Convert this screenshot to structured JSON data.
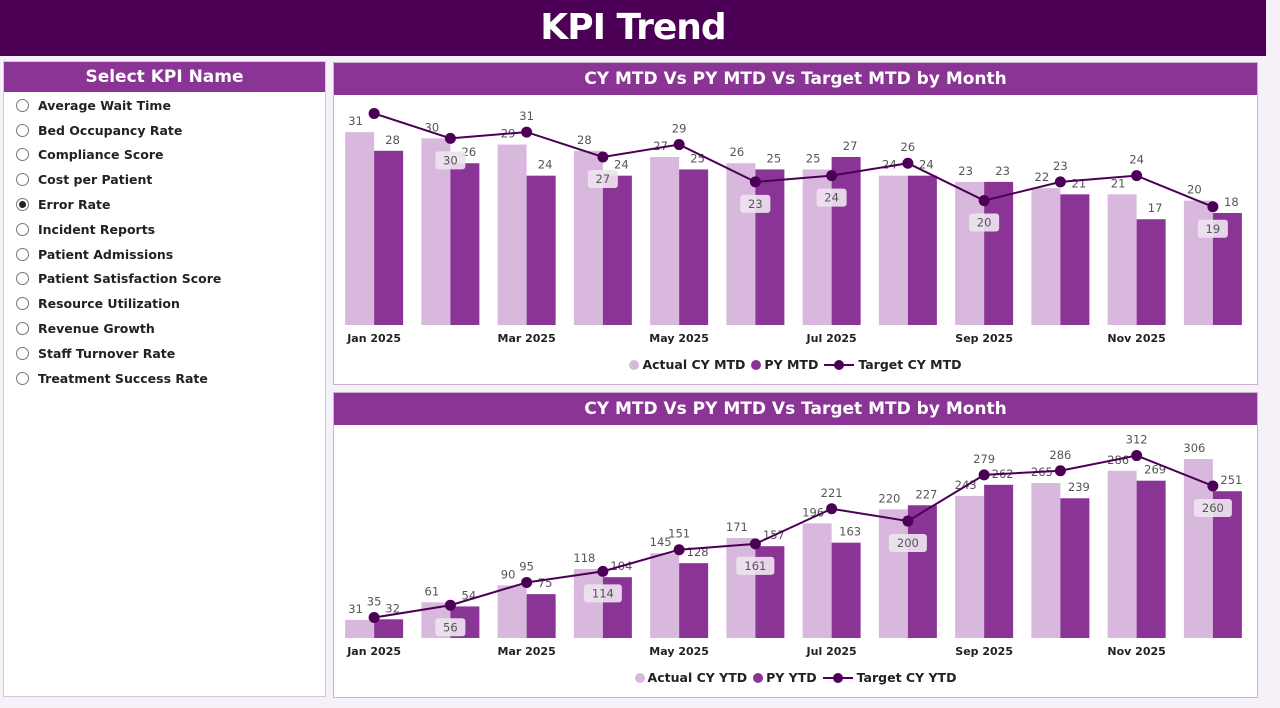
{
  "title": "KPI Trend",
  "slicer": {
    "title": "Select KPI Name",
    "selected": "Error Rate",
    "items": [
      "Average Wait Time",
      "Bed Occupancy Rate",
      "Compliance Score",
      "Cost per Patient",
      "Error Rate",
      "Incident Reports",
      "Patient Admissions",
      "Patient Satisfaction Score",
      "Resource Utilization",
      "Revenue Growth",
      "Staff Turnover Rate",
      "Treatment Success Rate"
    ]
  },
  "colors": {
    "header": "#4b0055",
    "panel": "#8a3596",
    "actual": "#d8b9dd",
    "py": "#8a3596",
    "target": "#4b0055"
  },
  "chart_data": [
    {
      "type": "bar+line",
      "title": "CY MTD Vs PY MTD Vs Target MTD by Month",
      "categories": [
        "Jan 2025",
        "Feb 2025",
        "Mar 2025",
        "Apr 2025",
        "May 2025",
        "Jun 2025",
        "Jul 2025",
        "Aug 2025",
        "Sep 2025",
        "Oct 2025",
        "Nov 2025",
        "Dec 2025"
      ],
      "x_tick_labels": [
        "Jan 2025",
        "",
        "Mar 2025",
        "",
        "May 2025",
        "",
        "Jul 2025",
        "",
        "Sep 2025",
        "",
        "Nov 2025",
        ""
      ],
      "ylim": [
        0,
        36
      ],
      "series": [
        {
          "name": "Actual CY MTD",
          "kind": "bar",
          "values": [
            31,
            30,
            29,
            28,
            27,
            26,
            25,
            24,
            23,
            22,
            21,
            20
          ]
        },
        {
          "name": "PY MTD",
          "kind": "bar",
          "values": [
            28,
            26,
            24,
            24,
            25,
            25,
            27,
            24,
            23,
            21,
            17,
            18
          ]
        },
        {
          "name": "Target CY MTD",
          "kind": "line",
          "values": [
            34,
            30,
            31,
            27,
            29,
            23,
            24,
            26,
            20,
            23,
            24,
            19
          ],
          "labels": [
            null,
            "30",
            "31",
            "27",
            "29",
            "23",
            "24",
            "26",
            "20",
            "23",
            "24",
            "19"
          ]
        }
      ]
    },
    {
      "type": "bar+line",
      "title": "CY MTD Vs PY MTD Vs Target MTD by Month",
      "categories": [
        "Jan 2025",
        "Feb 2025",
        "Mar 2025",
        "Apr 2025",
        "May 2025",
        "Jun 2025",
        "Jul 2025",
        "Aug 2025",
        "Sep 2025",
        "Oct 2025",
        "Nov 2025",
        "Dec 2025"
      ],
      "x_tick_labels": [
        "Jan 2025",
        "",
        "Mar 2025",
        "",
        "May 2025",
        "",
        "Jul 2025",
        "",
        "Sep 2025",
        "",
        "Nov 2025",
        ""
      ],
      "ylim": [
        0,
        354
      ],
      "series": [
        {
          "name": "Actual CY YTD",
          "kind": "bar",
          "values": [
            31,
            61,
            90,
            118,
            145,
            171,
            196,
            220,
            243,
            265,
            286,
            306
          ]
        },
        {
          "name": "PY YTD",
          "kind": "bar",
          "values": [
            32,
            54,
            75,
            104,
            128,
            157,
            163,
            227,
            262,
            239,
            269,
            251
          ]
        },
        {
          "name": "Target CY YTD",
          "kind": "line",
          "values": [
            35,
            56,
            95,
            114,
            151,
            161,
            221,
            200,
            279,
            286,
            312,
            260
          ],
          "labels": [
            "35",
            "56",
            "95",
            "114",
            "151",
            "161",
            "221",
            "200",
            "279",
            "286",
            "312",
            "260"
          ]
        }
      ]
    }
  ]
}
